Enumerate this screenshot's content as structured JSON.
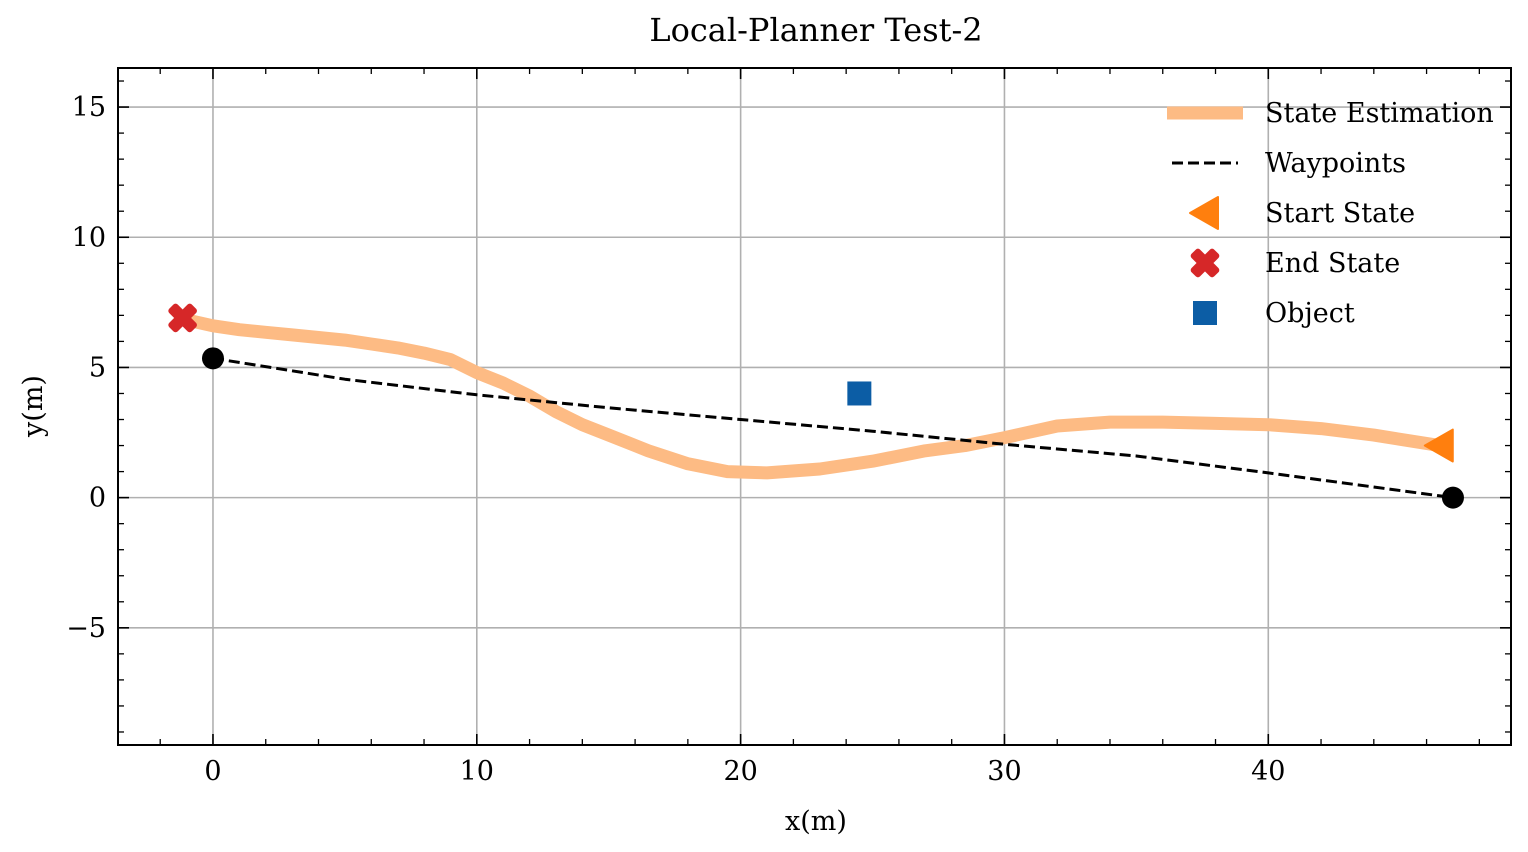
{
  "chart_data": {
    "type": "line",
    "title": "Local-Planner Test-2",
    "xlabel": "x(m)",
    "ylabel": "y(m)",
    "xlim": [
      -3.6,
      49.2
    ],
    "ylim": [
      -9.5,
      16.5
    ],
    "xticks": [
      0,
      10,
      20,
      30,
      40
    ],
    "yticks": [
      -5,
      0,
      5,
      10,
      15
    ],
    "xtick_labels": [
      "0",
      "10",
      "20",
      "30",
      "40"
    ],
    "ytick_labels": [
      "−5",
      "0",
      "5",
      "10",
      "15"
    ],
    "grid": true,
    "legend_position": "top-right",
    "series": [
      {
        "name": "State Estimation",
        "color": "#fdbb84",
        "style": "solid-thick",
        "x": [
          46.5,
          44,
          42,
          40,
          38,
          36,
          34,
          32,
          30,
          28.5,
          27,
          25,
          23,
          21,
          19.5,
          18,
          16.5,
          15,
          14,
          13,
          12,
          11,
          10,
          9,
          8,
          7,
          6,
          5,
          4,
          3,
          2,
          1,
          0,
          -1.1
        ],
        "y": [
          2.0,
          2.4,
          2.65,
          2.8,
          2.85,
          2.9,
          2.9,
          2.75,
          2.3,
          2.0,
          1.8,
          1.4,
          1.1,
          0.95,
          1.0,
          1.3,
          1.8,
          2.4,
          2.8,
          3.3,
          3.9,
          4.4,
          4.8,
          5.3,
          5.55,
          5.75,
          5.9,
          6.05,
          6.15,
          6.25,
          6.35,
          6.45,
          6.6,
          6.85
        ]
      },
      {
        "name": "Waypoints",
        "color": "#000000",
        "style": "dashed",
        "x": [
          0,
          5,
          10,
          15,
          20,
          25,
          30,
          35,
          40,
          47
        ],
        "y": [
          5.35,
          4.55,
          3.95,
          3.45,
          3.0,
          2.55,
          2.05,
          1.6,
          0.95,
          0.0
        ]
      }
    ],
    "markers": [
      {
        "name": "Start State",
        "shape": "triangle-left",
        "color": "#ff7f0e",
        "x": 46.5,
        "y": 2.0
      },
      {
        "name": "End State",
        "shape": "x-filled",
        "color": "#d62728",
        "x": -1.15,
        "y": 6.9
      },
      {
        "name": "Object",
        "shape": "square",
        "color": "#0c5da5",
        "x": 24.5,
        "y": 4.0
      },
      {
        "name": "",
        "shape": "circle",
        "color": "#000000",
        "x": 0.0,
        "y": 5.35
      },
      {
        "name": "",
        "shape": "circle",
        "color": "#000000",
        "x": 47.0,
        "y": 0.0
      }
    ],
    "legend": [
      {
        "label": "State Estimation",
        "kind": "line-thick",
        "color": "#fdbb84"
      },
      {
        "label": "Waypoints",
        "kind": "line-dashed",
        "color": "#000000"
      },
      {
        "label": "Start State",
        "kind": "triangle-left",
        "color": "#ff7f0e"
      },
      {
        "label": "End State",
        "kind": "x-filled",
        "color": "#d62728"
      },
      {
        "label": "Object",
        "kind": "square",
        "color": "#0c5da5"
      }
    ]
  }
}
